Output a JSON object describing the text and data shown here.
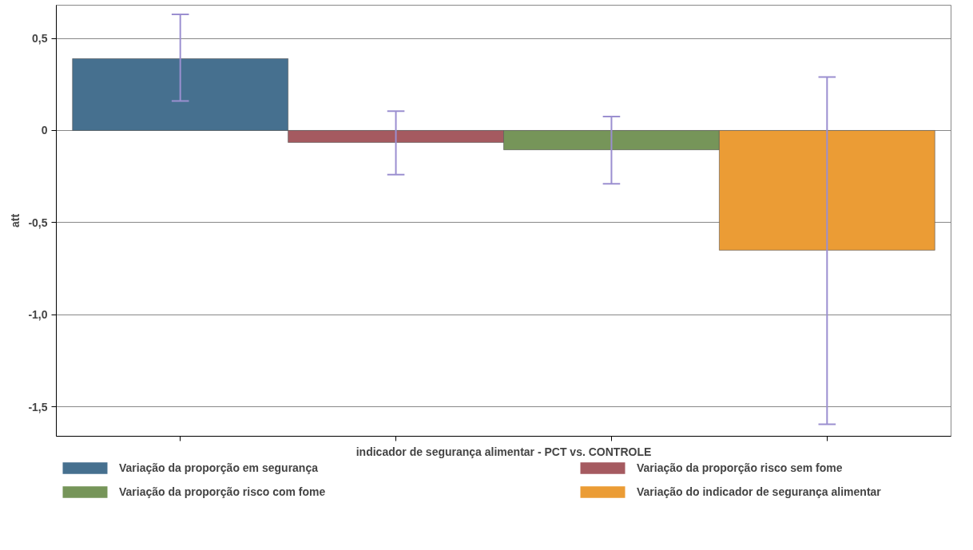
{
  "chart_data": {
    "type": "bar",
    "xlabel": "indicador de segurança alimentar - PCT vs. CONTROLE",
    "ylabel": "att",
    "categories": [
      null,
      null,
      null,
      null
    ],
    "series": [
      {
        "name": "Variação da proporção em segurança",
        "color": "#46708f",
        "values": [
          0.39,
          null,
          null,
          null
        ],
        "errors": [
          [
            0.16,
            0.63
          ],
          null,
          null,
          null
        ]
      },
      {
        "name": "Variação da proporção risco sem fome",
        "color": "#a55a60",
        "values": [
          null,
          -0.065,
          null,
          null
        ],
        "errors": [
          null,
          [
            -0.24,
            0.105
          ],
          null,
          null
        ]
      },
      {
        "name": "Variação da proporção risco com fome",
        "color": "#769559",
        "values": [
          null,
          null,
          -0.105,
          null
        ],
        "errors": [
          null,
          null,
          [
            -0.29,
            0.075
          ],
          null
        ]
      },
      {
        "name": "Variação do indicador de segurança alimentar",
        "color": "#eb9c35",
        "values": [
          null,
          null,
          null,
          -0.65
        ],
        "errors": [
          null,
          null,
          null,
          [
            -1.595,
            0.29
          ]
        ]
      }
    ],
    "ylim": [
      -1.66,
      0.68
    ],
    "yticks": [
      {
        "value": -1.5,
        "label": "-1,5"
      },
      {
        "value": -1.0,
        "label": "-1,0"
      },
      {
        "value": -0.5,
        "label": "-0,5"
      },
      0,
      {
        "value": 0.5,
        "label": "0,5"
      }
    ],
    "grid": "y",
    "legend": "bottom",
    "tick_labels": "y"
  }
}
